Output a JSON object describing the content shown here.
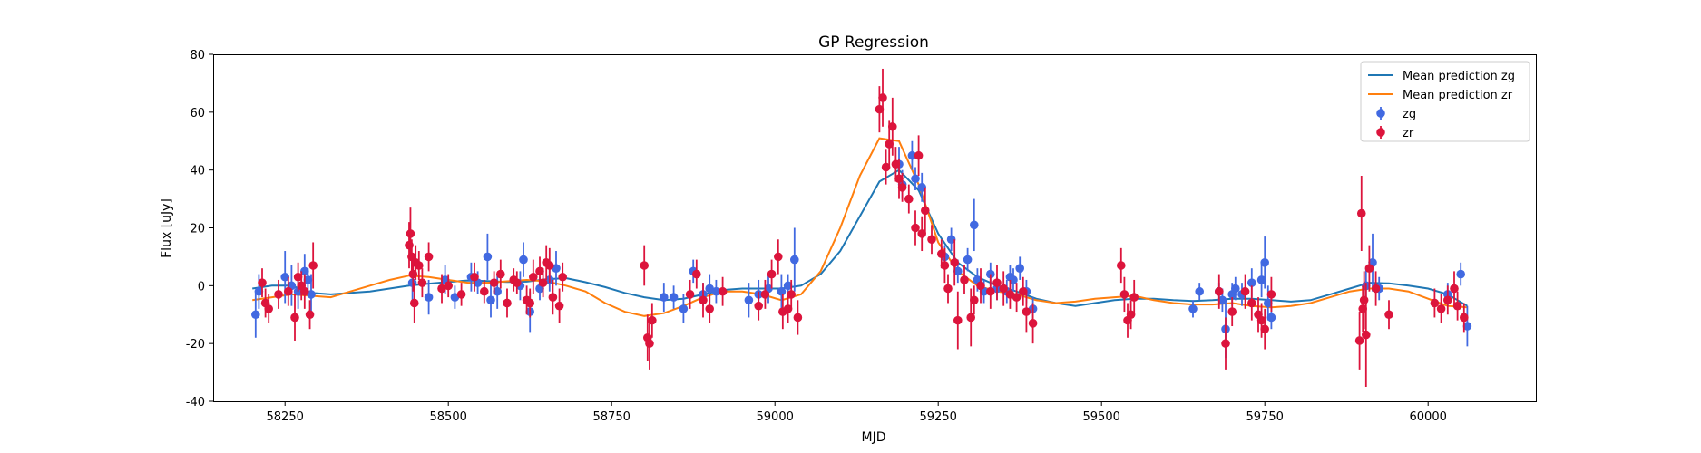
{
  "chart_data": {
    "type": "scatter",
    "title": "GP Regression",
    "xlabel": "MJD",
    "ylabel": "Flux [uJy]",
    "xlim": [
      58140,
      60165
    ],
    "ylim": [
      -40,
      80
    ],
    "xticks": [
      58250,
      58500,
      58750,
      59000,
      59250,
      59500,
      59750,
      60000
    ],
    "yticks": [
      -40,
      -20,
      0,
      20,
      40,
      60,
      80
    ],
    "grid": false,
    "legend_position": "top-right",
    "colors": {
      "zg_curve": "#1f77b4",
      "zr_curve": "#ff7f0e",
      "zg_points": "#4169e1",
      "zr_points": "#dc143c"
    },
    "series": [
      {
        "name": "Mean prediction zg",
        "kind": "line",
        "x": [
          58200,
          58230,
          58260,
          58290,
          58320,
          58350,
          58380,
          58410,
          58440,
          58470,
          58500,
          58530,
          58560,
          58590,
          58620,
          58650,
          58680,
          58710,
          58740,
          58770,
          58800,
          58830,
          58860,
          58890,
          58920,
          58950,
          58980,
          59010,
          59040,
          59070,
          59100,
          59130,
          59160,
          59190,
          59220,
          59250,
          59280,
          59310,
          59340,
          59370,
          59400,
          59430,
          59460,
          59490,
          59520,
          59550,
          59580,
          59610,
          59640,
          59670,
          59700,
          59730,
          59760,
          59790,
          59820,
          59850,
          59880,
          59910,
          59940,
          59970,
          60000,
          60030,
          60060
        ],
        "y": [
          -1,
          0,
          0,
          -2.5,
          -3,
          -2.5,
          -2,
          -1,
          0,
          0.7,
          1.3,
          1.8,
          1.6,
          1.3,
          1.4,
          2.2,
          2.6,
          1.2,
          -0.5,
          -2.5,
          -4,
          -5,
          -4.5,
          -3,
          -1.5,
          -1,
          -1,
          -1,
          0,
          4,
          12,
          24,
          36,
          40,
          33,
          18,
          8,
          3,
          0,
          -2,
          -4.5,
          -6,
          -7,
          -6,
          -5,
          -4.5,
          -4.5,
          -5,
          -5.3,
          -5,
          -4.5,
          -4.5,
          -5,
          -5.5,
          -5,
          -3,
          -1,
          1,
          0.8,
          0,
          -1,
          -3,
          -7
        ]
      },
      {
        "name": "Mean prediction zr",
        "kind": "line",
        "x": [
          58200,
          58230,
          58260,
          58290,
          58320,
          58350,
          58380,
          58410,
          58440,
          58470,
          58500,
          58530,
          58560,
          58590,
          58620,
          58650,
          58680,
          58710,
          58740,
          58770,
          58800,
          58830,
          58860,
          58890,
          58920,
          58950,
          58980,
          59010,
          59040,
          59070,
          59100,
          59130,
          59160,
          59190,
          59220,
          59250,
          59280,
          59310,
          59340,
          59370,
          59400,
          59430,
          59460,
          59490,
          59520,
          59550,
          59580,
          59610,
          59640,
          59670,
          59700,
          59730,
          59760,
          59790,
          59820,
          59850,
          59880,
          59910,
          59940,
          59970,
          60000,
          60030,
          60060
        ],
        "y": [
          -5,
          -4,
          -3,
          -3.5,
          -4,
          -2,
          0,
          2,
          3.5,
          3,
          2,
          1,
          1,
          1.5,
          2,
          1.5,
          0,
          -2,
          -6,
          -9,
          -10.5,
          -9.5,
          -7,
          -4,
          -2,
          -2,
          -3,
          -5,
          -3,
          5,
          20,
          38,
          51,
          50,
          35,
          15,
          5,
          0,
          -2,
          -3,
          -5,
          -6,
          -5.5,
          -4.5,
          -4,
          -3.5,
          -5,
          -6,
          -6.5,
          -6.5,
          -6,
          -7,
          -7.5,
          -7,
          -6,
          -4,
          -2,
          -1,
          -1,
          -2,
          -4.5,
          -7,
          -7.5
        ]
      },
      {
        "name": "zg",
        "kind": "errorbar",
        "x": [
          58205,
          58210,
          58250,
          58260,
          58270,
          58280,
          58285,
          58290,
          58445,
          58470,
          58495,
          58510,
          58535,
          58545,
          58560,
          58565,
          58575,
          58610,
          58615,
          58625,
          58640,
          58655,
          58665,
          58830,
          58845,
          58860,
          58875,
          58890,
          58900,
          58910,
          58960,
          58975,
          58990,
          59010,
          59020,
          59030,
          59190,
          59195,
          59210,
          59215,
          59225,
          59260,
          59270,
          59280,
          59295,
          59305,
          59310,
          59320,
          59330,
          59340,
          59355,
          59360,
          59365,
          59375,
          59385,
          59395,
          59640,
          59650,
          59680,
          59685,
          59690,
          59700,
          59705,
          59715,
          59730,
          59745,
          59750,
          59755,
          59760,
          59905,
          59915,
          59925,
          60030,
          60050,
          60060
        ],
        "y": [
          -10,
          -2,
          3,
          0,
          -2,
          5,
          2,
          -3,
          1,
          -4,
          2,
          -4,
          3,
          1,
          10,
          -5,
          -2,
          0,
          9,
          -9,
          -1,
          2,
          6,
          -4,
          -4,
          -8,
          5,
          -3,
          -1,
          -2,
          -5,
          -3,
          -1,
          -2,
          0,
          9,
          42,
          35,
          45,
          37,
          34,
          10,
          16,
          5,
          9,
          21,
          2,
          -2,
          4,
          -1,
          -2,
          3,
          2,
          6,
          -2,
          -8,
          -8,
          -2,
          -2,
          -5,
          -15,
          -3,
          -1,
          -3,
          1,
          2,
          8,
          -6,
          -11,
          0,
          8,
          -1,
          -3,
          4,
          -14
        ],
        "err": [
          8,
          6,
          9,
          7,
          6,
          6,
          4,
          7,
          6,
          6,
          5,
          4,
          5,
          4,
          8,
          6,
          6,
          5,
          6,
          7,
          4,
          4,
          6,
          5,
          4,
          5,
          4,
          4,
          5,
          4,
          6,
          5,
          5,
          6,
          4,
          11,
          6,
          5,
          5,
          4,
          5,
          4,
          4,
          4,
          4,
          9,
          4,
          4,
          4,
          4,
          4,
          4,
          4,
          4,
          4,
          4,
          3,
          3,
          3,
          4,
          10,
          4,
          4,
          4,
          5,
          6,
          9,
          6,
          4,
          6,
          10,
          4,
          4,
          4,
          7
        ]
      },
      {
        "name": "zr",
        "kind": "errorbar",
        "x": [
          58215,
          58220,
          58225,
          58240,
          58255,
          58265,
          58270,
          58275,
          58280,
          58288,
          58293,
          58440,
          58442,
          58444,
          58446,
          58448,
          58450,
          58455,
          58460,
          58470,
          58490,
          58500,
          58520,
          58540,
          58555,
          58570,
          58580,
          58590,
          58600,
          58605,
          58620,
          58625,
          58630,
          58640,
          58645,
          58650,
          58655,
          58660,
          58670,
          58675,
          58800,
          58805,
          58808,
          58812,
          58870,
          58880,
          58890,
          58900,
          58920,
          58975,
          58985,
          58995,
          59005,
          59012,
          59020,
          59025,
          59035,
          59160,
          59165,
          59170,
          59175,
          59180,
          59185,
          59190,
          59195,
          59205,
          59215,
          59220,
          59225,
          59230,
          59240,
          59255,
          59260,
          59265,
          59275,
          59280,
          59290,
          59300,
          59305,
          59315,
          59330,
          59340,
          59350,
          59360,
          59370,
          59380,
          59385,
          59395,
          59530,
          59535,
          59540,
          59545,
          59550,
          59680,
          59690,
          59700,
          59720,
          59730,
          59740,
          59745,
          59750,
          59760,
          59895,
          59898,
          59900,
          59902,
          59905,
          59910,
          59920,
          59940,
          60010,
          60020,
          60030,
          60040,
          60045,
          60055
        ],
        "y": [
          1,
          -6,
          -8,
          -3,
          -2,
          -11,
          3,
          0,
          -2,
          -10,
          7,
          14,
          18,
          10,
          4,
          -6,
          8,
          7,
          1,
          10,
          -1,
          0,
          -3,
          3,
          -2,
          1,
          4,
          -6,
          2,
          1,
          -5,
          -6,
          3,
          5,
          1,
          8,
          7,
          -4,
          -7,
          3,
          7,
          -18,
          -20,
          -12,
          -3,
          4,
          -5,
          -8,
          -2,
          -7,
          -3,
          4,
          10,
          -9,
          -8,
          -3,
          -11,
          61,
          65,
          41,
          49,
          55,
          42,
          37,
          34,
          30,
          20,
          45,
          18,
          26,
          16,
          11,
          7,
          -1,
          8,
          -12,
          2,
          -11,
          -5,
          0,
          -2,
          1,
          -1,
          -3,
          -4,
          -2,
          -9,
          -13,
          7,
          -3,
          -12,
          -10,
          -4,
          -2,
          -20,
          -9,
          -2,
          -6,
          -10,
          -12,
          -15,
          -3,
          -19,
          25,
          -8,
          -5,
          -17,
          6,
          -1,
          -10,
          -6,
          -8,
          -5,
          -1,
          -7,
          -11
        ],
        "err": [
          5,
          5,
          5,
          5,
          5,
          8,
          5,
          5,
          6,
          5,
          8,
          8,
          9,
          6,
          6,
          7,
          6,
          5,
          5,
          5,
          5,
          4,
          4,
          5,
          4,
          4,
          5,
          5,
          4,
          4,
          5,
          5,
          6,
          5,
          5,
          6,
          6,
          6,
          6,
          5,
          7,
          8,
          9,
          6,
          5,
          5,
          6,
          5,
          5,
          5,
          5,
          5,
          6,
          6,
          5,
          5,
          6,
          8,
          10,
          6,
          8,
          10,
          6,
          7,
          5,
          5,
          6,
          7,
          6,
          8,
          5,
          5,
          6,
          5,
          8,
          10,
          5,
          10,
          5,
          6,
          6,
          6,
          6,
          5,
          5,
          5,
          7,
          7,
          6,
          6,
          6,
          5,
          6,
          6,
          9,
          5,
          6,
          6,
          6,
          6,
          7,
          6,
          10,
          13,
          8,
          10,
          18,
          8,
          6,
          5,
          5,
          5,
          5,
          6,
          5,
          5
        ]
      }
    ]
  }
}
